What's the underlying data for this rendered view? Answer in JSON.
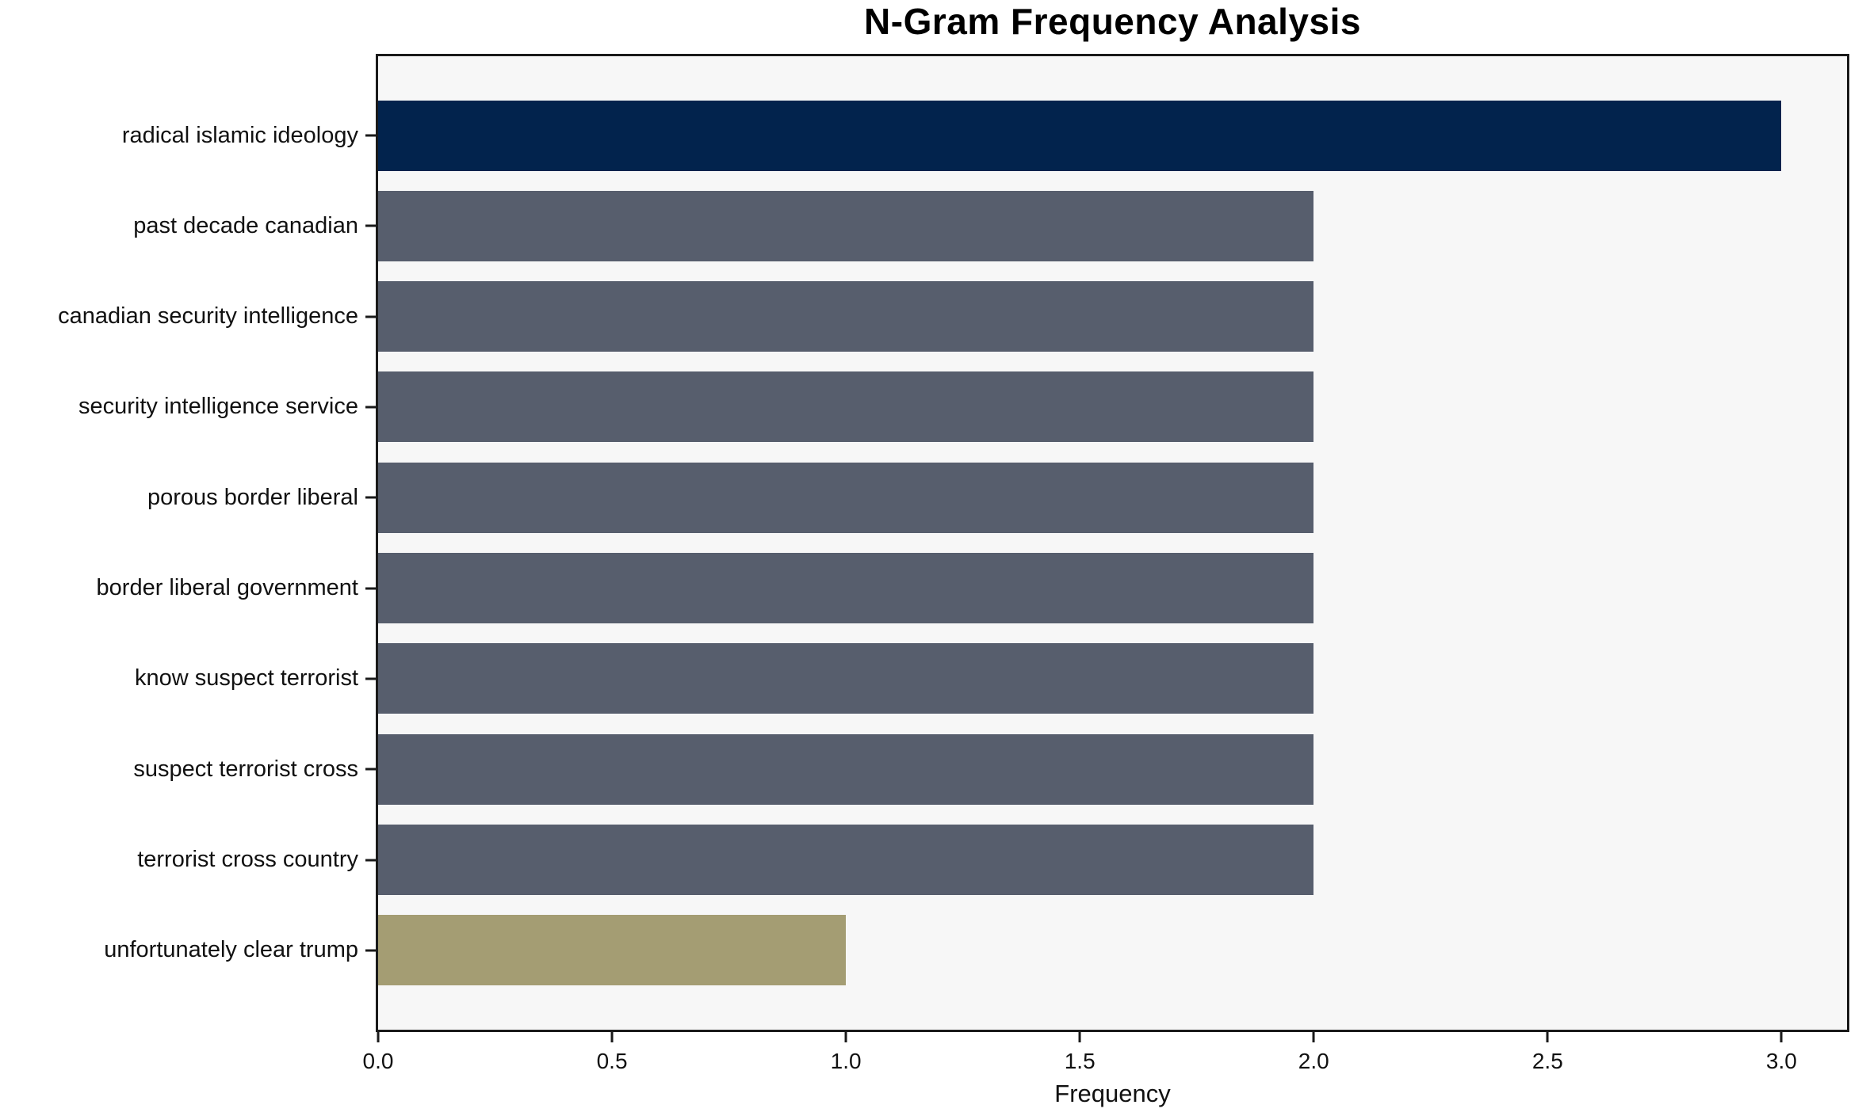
{
  "chart_data": {
    "type": "bar",
    "orientation": "horizontal",
    "title": "N-Gram Frequency Analysis",
    "xlabel": "Frequency",
    "ylabel": "",
    "categories": [
      "radical islamic ideology",
      "past decade canadian",
      "canadian security intelligence",
      "security intelligence service",
      "porous border liberal",
      "border liberal government",
      "know suspect terrorist",
      "suspect terrorist cross",
      "terrorist cross country",
      "unfortunately clear trump"
    ],
    "values": [
      3,
      2,
      2,
      2,
      2,
      2,
      2,
      2,
      2,
      1
    ],
    "bar_colors": [
      "#02234d",
      "#575e6d",
      "#575e6d",
      "#575e6d",
      "#575e6d",
      "#575e6d",
      "#575e6d",
      "#575e6d",
      "#575e6d",
      "#a49d73"
    ],
    "xticks": [
      0,
      0.5,
      1,
      1.5,
      2,
      2.5,
      3
    ],
    "xtick_labels": [
      "0.0",
      "0.5",
      "1.0",
      "1.5",
      "2.0",
      "2.5",
      "3.0"
    ],
    "xlim": [
      0,
      3.14
    ],
    "grid": false,
    "legend": null,
    "plot_bg": "#f7f7f7",
    "figure_bg": "#ffffff"
  }
}
